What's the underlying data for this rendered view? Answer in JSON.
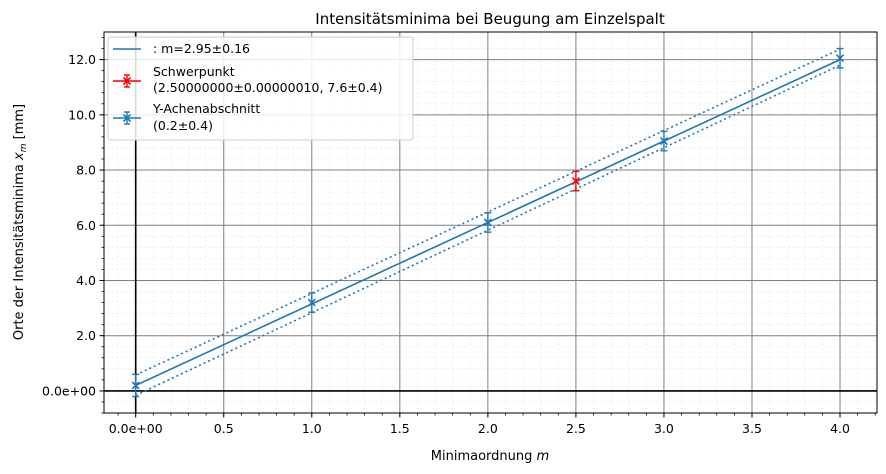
{
  "chart_data": {
    "type": "scatter",
    "title": "Intensitätsminima bei Beugung am Einzelspalt",
    "xlabel": "Minimaordnung",
    "xlabel_var": "m",
    "ylabel": "Orte der Intensitätsminima",
    "ylabel_var": "x",
    "ylabel_sub": "m",
    "ylabel_unit": "[mm]",
    "xlim": [
      -0.18,
      4.21
    ],
    "ylim": [
      -0.8,
      13.0
    ],
    "x_ticks": [
      0,
      0.5,
      1.0,
      1.5,
      2.0,
      2.5,
      3.0,
      3.5,
      4.0
    ],
    "x_tick_labels": [
      "0.0e+00",
      "0.5",
      "1.0",
      "1.5",
      "2.0",
      "2.5",
      "3.0",
      "3.5",
      "4.0"
    ],
    "y_ticks": [
      0,
      2,
      4,
      6,
      8,
      10,
      12
    ],
    "y_tick_labels": [
      "0.0e+00",
      "2.0",
      "4.0",
      "6.0",
      "8.0",
      "10.0",
      "12.0"
    ],
    "grid": true,
    "minor_grid": true,
    "zero_lines": true,
    "legend_position": "top-left",
    "fit": {
      "name": ": m=2.95±0.16",
      "slope": 2.95,
      "intercept": 0.2,
      "x_range": [
        0,
        4
      ],
      "upper": [
        0.58,
        12.38
      ],
      "lower": [
        -0.16,
        11.8
      ],
      "color": "#1f77b4"
    },
    "series": [
      {
        "name": "Y-Achenabschnitt",
        "name_line2": "(0.2±0.4)",
        "color": "#1f77b4",
        "points": [
          {
            "x": 0,
            "y": 0.2,
            "yerr": 0.4
          },
          {
            "x": 1,
            "y": 3.2,
            "yerr": 0.35
          },
          {
            "x": 2,
            "y": 6.1,
            "yerr": 0.35
          },
          {
            "x": 3,
            "y": 9.05,
            "yerr": 0.35
          },
          {
            "x": 4,
            "y": 12.05,
            "yerr": 0.35
          }
        ]
      },
      {
        "name": "Schwerpunkt",
        "name_line2": "(2.50000000±0.00000010, 7.6±0.4)",
        "color": "#ff0000",
        "points": [
          {
            "x": 2.5,
            "y": 7.6,
            "yerr": 0.35
          }
        ]
      }
    ]
  }
}
